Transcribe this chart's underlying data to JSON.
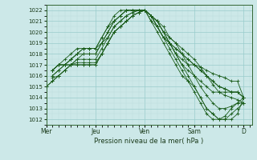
{
  "bg_color": "#cce8e8",
  "grid_major_color": "#99cccc",
  "grid_minor_color": "#bbdddd",
  "line_color": "#1a5c1a",
  "xlabel": "Pression niveau de la mer( hPa )",
  "ylim": [
    1011.5,
    1022.5
  ],
  "yticks": [
    1012,
    1013,
    1014,
    1015,
    1016,
    1017,
    1018,
    1019,
    1020,
    1021,
    1022
  ],
  "xtick_labels": [
    "Mer",
    "Jeu",
    "Ven",
    "Sam",
    "D"
  ],
  "xtick_positions": [
    0,
    48,
    96,
    144,
    192
  ],
  "total_hours": 200,
  "curves": [
    [
      [
        0,
        6,
        12,
        18,
        24,
        30,
        36,
        42,
        48,
        54,
        60,
        66,
        72,
        78,
        84,
        90,
        96,
        102,
        108,
        114,
        120,
        126,
        132,
        138,
        144,
        150,
        156,
        162,
        168,
        174,
        180,
        186,
        192
      ],
      [
        1015,
        1015.5,
        1016,
        1016.5,
        1017,
        1017,
        1017,
        1017,
        1017,
        1018,
        1019,
        1020,
        1020.5,
        1021,
        1021.5,
        1021.8,
        1022,
        1021,
        1020,
        1019,
        1018,
        1017,
        1016,
        1015.5,
        1015,
        1014,
        1013,
        1012.5,
        1012,
        1012,
        1012,
        1012.5,
        1014
      ]
    ],
    [
      [
        0,
        6,
        12,
        18,
        24,
        30,
        36,
        42,
        48,
        54,
        60,
        66,
        72,
        78,
        84,
        90,
        96,
        102,
        108,
        114,
        120,
        126,
        132,
        138,
        144,
        150,
        156,
        162,
        168,
        174,
        180,
        186,
        192
      ],
      [
        1015,
        1015.5,
        1016,
        1016.5,
        1017,
        1017,
        1017,
        1017,
        1017,
        1018,
        1019,
        1020,
        1020.5,
        1021,
        1021.5,
        1021.8,
        1022,
        1021,
        1020.5,
        1019.5,
        1019,
        1018,
        1017,
        1016.5,
        1016,
        1015.5,
        1015,
        1014.5,
        1014.5,
        1014.5,
        1014.5,
        1014.5,
        1014
      ]
    ],
    [
      [
        6,
        12,
        18,
        24,
        30,
        36,
        42,
        48,
        54,
        60,
        66,
        72,
        78,
        84,
        90,
        96,
        102,
        108,
        114,
        120,
        126,
        132,
        138,
        144,
        150,
        156,
        162,
        168,
        174,
        180,
        186,
        192
      ],
      [
        1016.5,
        1017,
        1017,
        1017,
        1017.2,
        1017.2,
        1017.2,
        1017.2,
        1018,
        1019,
        1020,
        1020.5,
        1021,
        1021.5,
        1021.8,
        1022,
        1021.5,
        1020.5,
        1019.5,
        1019,
        1018,
        1017.5,
        1017,
        1017,
        1016.8,
        1016.5,
        1016.2,
        1016,
        1015.8,
        1015.5,
        1015.5,
        1014
      ]
    ],
    [
      [
        6,
        12,
        18,
        24,
        30,
        36,
        42,
        48,
        54,
        60,
        66,
        72,
        78,
        84,
        90,
        96,
        102,
        108,
        114,
        120,
        126,
        132,
        138,
        144,
        150,
        156,
        162,
        168,
        174,
        180,
        186,
        192
      ],
      [
        1016.5,
        1017,
        1017,
        1017,
        1017.5,
        1017.5,
        1017.5,
        1017.5,
        1018.5,
        1019.5,
        1020.5,
        1021,
        1021.5,
        1021.8,
        1022,
        1022,
        1021.5,
        1020.5,
        1019.5,
        1019,
        1018.5,
        1018,
        1017.5,
        1017,
        1016.5,
        1016,
        1015.5,
        1015,
        1014.8,
        1014.5,
        1014.5,
        1014
      ]
    ],
    [
      [
        6,
        12,
        18,
        24,
        30,
        36,
        42,
        48,
        54,
        60,
        66,
        72,
        78,
        84,
        90,
        96,
        102,
        108,
        114,
        120,
        126,
        132,
        138,
        144,
        150,
        156,
        162,
        168,
        174,
        180,
        186,
        192
      ],
      [
        1016.5,
        1017,
        1017,
        1017.5,
        1018,
        1018,
        1018,
        1018,
        1019,
        1019.5,
        1020.5,
        1021,
        1021.5,
        1021.8,
        1022,
        1022,
        1021.5,
        1021,
        1020,
        1019.5,
        1019,
        1018.5,
        1018,
        1017.5,
        1016.8,
        1016,
        1015.2,
        1014.5,
        1014.2,
        1014,
        1013.8,
        1013.5
      ]
    ],
    [
      [
        6,
        12,
        18,
        24,
        30,
        36,
        42,
        48,
        54,
        60,
        66,
        72,
        78,
        84,
        90,
        96,
        102,
        108,
        114,
        120,
        126,
        132,
        138,
        144,
        150,
        156,
        162,
        168,
        174,
        180,
        186,
        192
      ],
      [
        1016.5,
        1017,
        1017.5,
        1018,
        1018.5,
        1018.5,
        1018.5,
        1018.5,
        1019,
        1020,
        1021,
        1021.5,
        1022,
        1022,
        1022,
        1022,
        1021.5,
        1021,
        1020.5,
        1019.5,
        1019,
        1018,
        1017,
        1016,
        1015,
        1014.2,
        1013.5,
        1013,
        1013,
        1013.2,
        1013.5,
        1013.5
      ]
    ],
    [
      [
        6,
        12,
        18,
        24,
        30,
        36,
        42,
        48,
        54,
        60,
        66,
        72,
        78,
        84,
        90,
        96,
        102,
        108,
        114,
        120,
        126,
        132,
        138,
        144,
        150,
        156,
        162,
        168,
        174,
        180,
        186,
        192
      ],
      [
        1016,
        1016.5,
        1017,
        1017.5,
        1018,
        1018.5,
        1018.5,
        1018.5,
        1019.5,
        1020.5,
        1021,
        1021.5,
        1022,
        1022,
        1022,
        1022,
        1021.5,
        1021,
        1020,
        1019,
        1018,
        1017,
        1016,
        1015,
        1014,
        1013,
        1012.5,
        1012,
        1012,
        1012.5,
        1013,
        1013.5
      ]
    ],
    [
      [
        6,
        12,
        18,
        24,
        30,
        36,
        42,
        48,
        54,
        60,
        66,
        72,
        78,
        84,
        90,
        96,
        102,
        108,
        114,
        120,
        126,
        132,
        138,
        144,
        150,
        156,
        162,
        168,
        174,
        180,
        186,
        192
      ],
      [
        1016,
        1016.5,
        1017,
        1017.5,
        1018,
        1018.5,
        1018.5,
        1018.5,
        1019.5,
        1020.5,
        1021.5,
        1022,
        1022,
        1022,
        1022,
        1022,
        1021.5,
        1020.5,
        1019.5,
        1018.5,
        1017.5,
        1016.5,
        1015.5,
        1014.5,
        1013.5,
        1012.5,
        1012,
        1012,
        1012.3,
        1013,
        1013.5,
        1014
      ]
    ],
    [
      [
        6,
        12,
        18,
        24,
        30,
        36,
        42,
        48,
        54,
        60,
        66,
        72,
        78,
        84,
        90,
        96,
        102,
        108,
        114,
        120,
        126,
        132,
        138,
        144,
        150,
        156,
        162,
        168,
        174,
        180,
        186,
        192
      ],
      [
        1015.8,
        1016,
        1016.5,
        1017,
        1017.5,
        1018,
        1018,
        1018,
        1019,
        1020,
        1021,
        1021.5,
        1022,
        1022,
        1022,
        1022,
        1021.5,
        1021,
        1020,
        1019,
        1018.5,
        1018,
        1017.5,
        1017,
        1016.5,
        1016,
        1015.5,
        1015,
        1014.8,
        1014.5,
        1014.5,
        1014
      ]
    ]
  ]
}
